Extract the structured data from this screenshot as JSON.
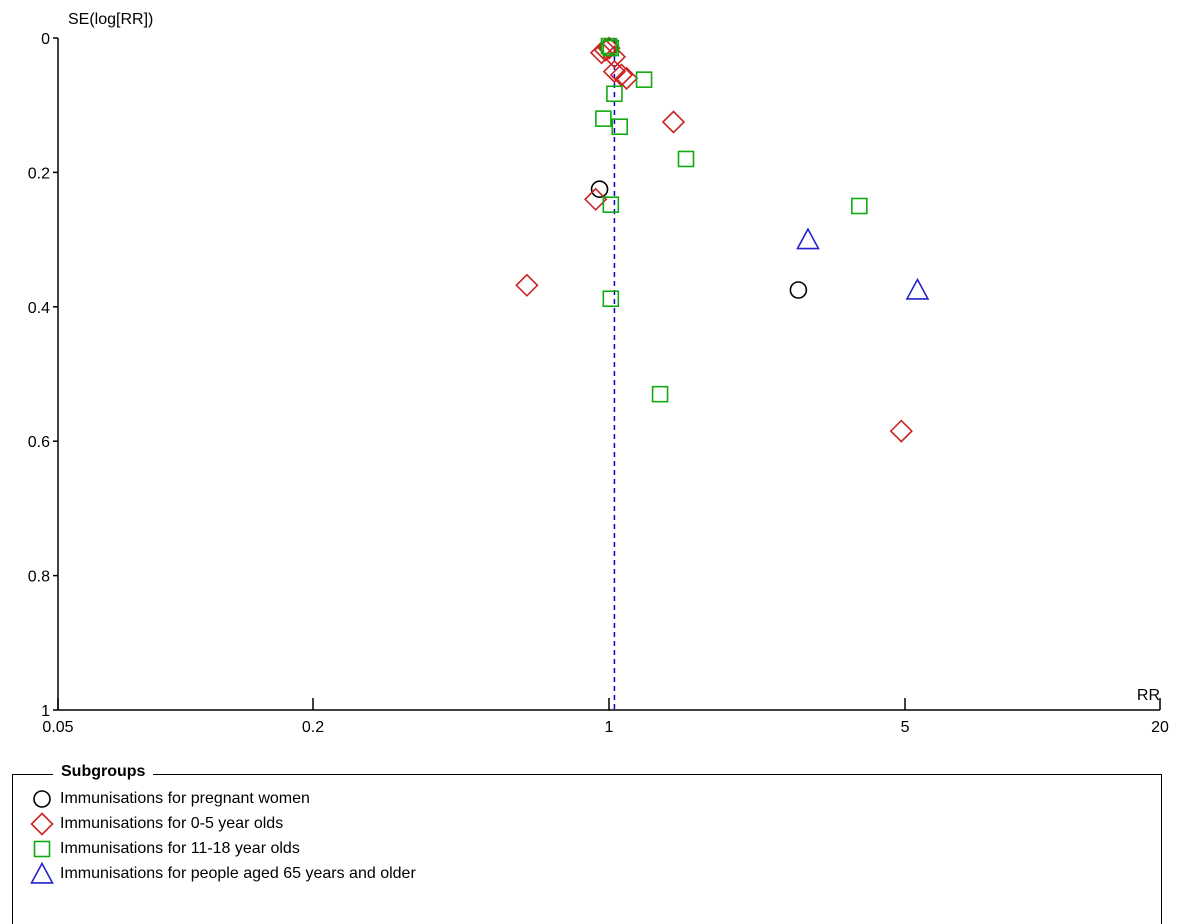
{
  "chart_data": {
    "type": "scatter",
    "ylabel": "SE(log[RR])",
    "xlabel": "RR",
    "x_scale": "log",
    "xlim": [
      0.05,
      20
    ],
    "ylim": [
      0,
      1
    ],
    "y_inverted": true,
    "x_ticks": [
      "0.05",
      "0.2",
      "1",
      "5",
      "20"
    ],
    "y_ticks": [
      "0",
      "0.2",
      "0.4",
      "0.6",
      "0.8",
      "1"
    ],
    "reference_line": {
      "x": 1.03,
      "style": "dashed",
      "color": "#0000cc"
    },
    "legend": {
      "title": "Subgroups",
      "placement": "bottom"
    },
    "series": [
      {
        "name": "Immunisations for pregnant women",
        "marker": "circle",
        "color": "#000000",
        "points": [
          {
            "x": 0.95,
            "y": 0.225
          },
          {
            "x": 2.8,
            "y": 0.375
          },
          {
            "x": 1.0,
            "y": 0.015
          }
        ]
      },
      {
        "name": "Immunisations for 0-5 year olds",
        "marker": "diamond",
        "color": "#cc2222",
        "points": [
          {
            "x": 0.96,
            "y": 0.022
          },
          {
            "x": 0.98,
            "y": 0.018
          },
          {
            "x": 1.0,
            "y": 0.015
          },
          {
            "x": 1.03,
            "y": 0.028
          },
          {
            "x": 1.03,
            "y": 0.05
          },
          {
            "x": 1.07,
            "y": 0.055
          },
          {
            "x": 1.1,
            "y": 0.06
          },
          {
            "x": 1.42,
            "y": 0.125
          },
          {
            "x": 0.93,
            "y": 0.24
          },
          {
            "x": 0.64,
            "y": 0.368
          },
          {
            "x": 4.9,
            "y": 0.585
          }
        ]
      },
      {
        "name": "Immunisations for 11-18 year olds",
        "marker": "square",
        "color": "#11aa11",
        "points": [
          {
            "x": 1.0,
            "y": 0.012
          },
          {
            "x": 1.01,
            "y": 0.015
          },
          {
            "x": 1.21,
            "y": 0.062
          },
          {
            "x": 1.03,
            "y": 0.083
          },
          {
            "x": 0.97,
            "y": 0.12
          },
          {
            "x": 1.06,
            "y": 0.132
          },
          {
            "x": 1.52,
            "y": 0.18
          },
          {
            "x": 1.01,
            "y": 0.248
          },
          {
            "x": 3.9,
            "y": 0.25
          },
          {
            "x": 1.01,
            "y": 0.388
          },
          {
            "x": 1.32,
            "y": 0.53
          }
        ]
      },
      {
        "name": "Immunisations for people aged 65 years and older",
        "marker": "triangle",
        "color": "#2222cc",
        "points": [
          {
            "x": 2.95,
            "y": 0.3
          },
          {
            "x": 5.35,
            "y": 0.375
          }
        ]
      }
    ]
  }
}
